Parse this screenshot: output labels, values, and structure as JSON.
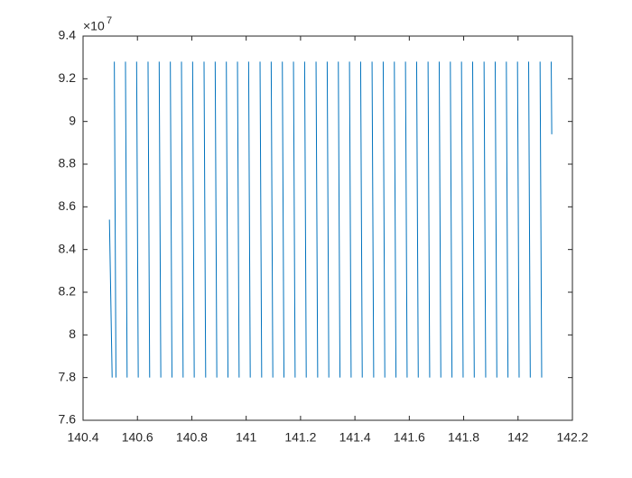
{
  "chart_data": {
    "type": "line",
    "y_exponent": {
      "base": "×10",
      "power": "7"
    },
    "x": [
      140.497,
      140.507,
      null,
      140.515,
      140.521,
      null,
      140.556,
      140.562,
      null,
      140.597,
      140.603,
      null,
      140.639,
      140.645,
      null,
      140.68,
      140.686,
      null,
      140.721,
      140.727,
      null,
      140.762,
      140.768,
      null,
      140.803,
      140.809,
      null,
      140.845,
      140.851,
      null,
      140.886,
      140.892,
      null,
      140.927,
      140.933,
      null,
      140.968,
      140.974,
      null,
      141.009,
      141.015,
      null,
      141.051,
      141.057,
      null,
      141.092,
      141.098,
      null,
      141.133,
      141.139,
      null,
      141.174,
      141.18,
      null,
      141.215,
      141.221,
      null,
      141.257,
      141.263,
      null,
      141.298,
      141.304,
      null,
      141.339,
      141.345,
      null,
      141.38,
      141.386,
      null,
      141.421,
      141.427,
      null,
      141.463,
      141.469,
      null,
      141.504,
      141.51,
      null,
      141.545,
      141.551,
      null,
      141.586,
      141.592,
      null,
      141.627,
      141.633,
      null,
      141.669,
      141.675,
      null,
      141.71,
      141.716,
      null,
      141.751,
      141.757,
      null,
      141.792,
      141.798,
      null,
      141.833,
      141.839,
      null,
      141.875,
      141.881,
      null,
      141.916,
      141.922,
      null,
      141.957,
      141.963,
      null,
      141.998,
      142.004,
      null,
      142.039,
      142.045,
      null,
      142.081,
      142.087,
      null,
      142.122,
      142.124
    ],
    "series": [
      {
        "color": "#0072bd",
        "values": [
          8.54,
          7.8,
          null,
          9.28,
          7.8,
          null,
          9.28,
          7.8,
          null,
          9.28,
          7.8,
          null,
          9.28,
          7.8,
          null,
          9.28,
          7.8,
          null,
          9.28,
          7.8,
          null,
          9.28,
          7.8,
          null,
          9.28,
          7.8,
          null,
          9.28,
          7.8,
          null,
          9.28,
          7.8,
          null,
          9.28,
          7.8,
          null,
          9.28,
          7.8,
          null,
          9.28,
          7.8,
          null,
          9.28,
          7.8,
          null,
          9.28,
          7.8,
          null,
          9.28,
          7.8,
          null,
          9.28,
          7.8,
          null,
          9.28,
          7.8,
          null,
          9.28,
          7.8,
          null,
          9.28,
          7.8,
          null,
          9.28,
          7.8,
          null,
          9.28,
          7.8,
          null,
          9.28,
          7.8,
          null,
          9.28,
          7.8,
          null,
          9.28,
          7.8,
          null,
          9.28,
          7.8,
          null,
          9.28,
          7.8,
          null,
          9.28,
          7.8,
          null,
          9.28,
          7.8,
          null,
          9.28,
          7.8,
          null,
          9.28,
          7.8,
          null,
          9.28,
          7.8,
          null,
          9.28,
          7.8,
          null,
          9.28,
          7.8,
          null,
          9.28,
          7.8,
          null,
          9.28,
          7.8,
          null,
          9.28,
          7.8,
          null,
          9.28,
          7.8,
          null,
          9.28,
          7.8,
          null,
          9.28,
          8.94
        ]
      }
    ],
    "xlim": [
      140.4,
      142.2
    ],
    "xticks": [
      140.4,
      140.6,
      140.8,
      141,
      141.2,
      141.4,
      141.6,
      141.8,
      142,
      142.2
    ],
    "ylim": [
      7.6,
      9.4
    ],
    "yticks": [
      7.6,
      7.8,
      8,
      8.2,
      8.4,
      8.6,
      8.8,
      9,
      9.2,
      9.4
    ],
    "grid": false
  }
}
